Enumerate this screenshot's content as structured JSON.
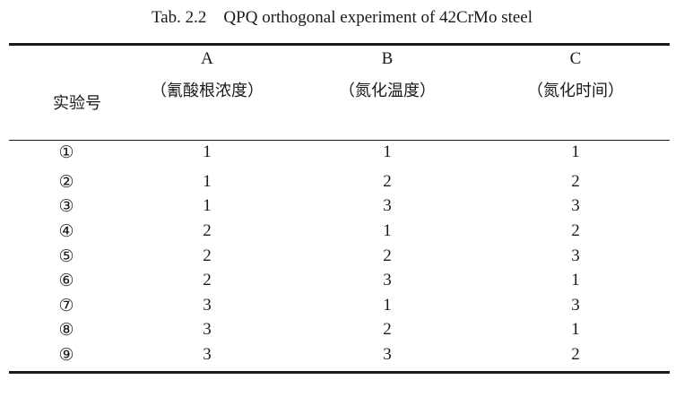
{
  "caption": "Tab. 2.2    QPQ orthogonal experiment of 42CrMo steel",
  "header": {
    "row_label": "实验号",
    "columns": [
      {
        "letter": "A",
        "sub": "（氰酸根浓度）"
      },
      {
        "letter": "B",
        "sub": "（氮化温度）"
      },
      {
        "letter": "C",
        "sub": "（氮化时间）"
      }
    ]
  },
  "rows": [
    {
      "no": "①",
      "a": "1",
      "b": "1",
      "c": "1"
    },
    {
      "no": "②",
      "a": "1",
      "b": "2",
      "c": "2"
    },
    {
      "no": "③",
      "a": "1",
      "b": "3",
      "c": "3"
    },
    {
      "no": "④",
      "a": "2",
      "b": "1",
      "c": "2"
    },
    {
      "no": "⑤",
      "a": "2",
      "b": "2",
      "c": "3"
    },
    {
      "no": "⑥",
      "a": "2",
      "b": "3",
      "c": "1"
    },
    {
      "no": "⑦",
      "a": "3",
      "b": "1",
      "c": "3"
    },
    {
      "no": "⑧",
      "a": "3",
      "b": "2",
      "c": "1"
    },
    {
      "no": "⑨",
      "a": "3",
      "b": "3",
      "c": "2"
    }
  ]
}
